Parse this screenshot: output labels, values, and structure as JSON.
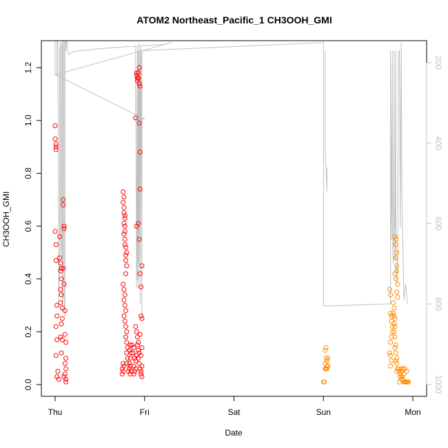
{
  "chart_data": {
    "type": "scatter",
    "title": "ATOM2 Northeast_Pacific_1 CH3OOH_GMI",
    "xlabel": "Date",
    "ylabel": "CH3OOH_GMI",
    "x_tick_labels": [
      "Thu",
      "Fri",
      "Sat",
      "Sun",
      "Mon"
    ],
    "ylim": [
      0.0,
      1.25
    ],
    "y_ticks": [
      "0.0",
      "0.2",
      "0.4",
      "0.6",
      "0.8",
      "1.0",
      "1.2"
    ],
    "y2_reversed_ticks": [
      "200",
      "400",
      "600",
      "800",
      "1000"
    ],
    "y2lim": [
      170,
      1050
    ],
    "grid": false,
    "colors": {
      "early": "#ff0000",
      "late": "#ff8c00",
      "profile": "#c0c0c0"
    },
    "series": [
      {
        "color": "#ff0000",
        "points": [
          [
            0.0,
            0.98
          ],
          [
            0.0,
            0.93
          ],
          [
            0.01,
            0.91
          ],
          [
            0.01,
            0.9
          ],
          [
            0.01,
            0.89
          ],
          [
            0.0,
            0.58
          ],
          [
            0.01,
            0.53
          ],
          [
            0.01,
            0.47
          ],
          [
            0.02,
            0.3
          ],
          [
            0.02,
            0.26
          ],
          [
            0.01,
            0.22
          ],
          [
            0.02,
            0.17
          ],
          [
            0.01,
            0.11
          ],
          [
            0.03,
            0.05
          ],
          [
            0.02,
            0.03
          ],
          [
            0.04,
            0.02
          ],
          [
            0.05,
            0.56
          ],
          [
            0.05,
            0.48
          ],
          [
            0.06,
            0.46
          ],
          [
            0.06,
            0.43
          ],
          [
            0.07,
            0.44
          ],
          [
            0.07,
            0.4
          ],
          [
            0.06,
            0.36
          ],
          [
            0.07,
            0.34
          ],
          [
            0.06,
            0.31
          ],
          [
            0.08,
            0.29
          ],
          [
            0.08,
            0.25
          ],
          [
            0.07,
            0.23
          ],
          [
            0.06,
            0.18
          ],
          [
            0.08,
            0.17
          ],
          [
            0.07,
            0.12
          ],
          [
            0.09,
            0.7
          ],
          [
            0.09,
            0.68
          ],
          [
            0.1,
            0.6
          ],
          [
            0.1,
            0.59
          ],
          [
            0.09,
            0.44
          ],
          [
            0.1,
            0.38
          ],
          [
            0.11,
            0.28
          ],
          [
            0.11,
            0.19
          ],
          [
            0.12,
            0.16
          ],
          [
            0.12,
            0.1
          ],
          [
            0.11,
            0.08
          ],
          [
            0.12,
            0.06
          ],
          [
            0.11,
            0.04
          ],
          [
            0.12,
            0.02
          ],
          [
            0.12,
            0.01
          ],
          [
            0.1,
            0.03
          ],
          [
            0.76,
            0.73
          ],
          [
            0.77,
            0.71
          ],
          [
            0.76,
            0.69
          ],
          [
            0.77,
            0.67
          ],
          [
            0.77,
            0.65
          ],
          [
            0.78,
            0.64
          ],
          [
            0.78,
            0.63
          ],
          [
            0.77,
            0.61
          ],
          [
            0.78,
            0.6
          ],
          [
            0.78,
            0.58
          ],
          [
            0.77,
            0.57
          ],
          [
            0.78,
            0.55
          ],
          [
            0.78,
            0.53
          ],
          [
            0.79,
            0.52
          ],
          [
            0.8,
            0.5
          ],
          [
            0.79,
            0.49
          ],
          [
            0.79,
            0.47
          ],
          [
            0.8,
            0.45
          ],
          [
            0.79,
            0.42
          ],
          [
            0.76,
            0.38
          ],
          [
            0.77,
            0.36
          ],
          [
            0.78,
            0.34
          ],
          [
            0.77,
            0.32
          ],
          [
            0.78,
            0.3
          ],
          [
            0.79,
            0.28
          ],
          [
            0.77,
            0.26
          ],
          [
            0.78,
            0.24
          ],
          [
            0.79,
            0.22
          ],
          [
            0.8,
            0.2
          ],
          [
            0.79,
            0.18
          ],
          [
            0.8,
            0.16
          ],
          [
            0.81,
            0.14
          ],
          [
            0.8,
            0.12
          ],
          [
            0.81,
            0.1
          ],
          [
            0.8,
            0.08
          ],
          [
            0.76,
            0.08
          ],
          [
            0.75,
            0.06
          ],
          [
            0.76,
            0.05
          ],
          [
            0.75,
            0.04
          ],
          [
            0.77,
            0.07
          ],
          [
            0.82,
            0.05
          ],
          [
            0.83,
            0.06
          ],
          [
            0.84,
            0.04
          ],
          [
            0.83,
            0.08
          ],
          [
            0.84,
            0.1
          ],
          [
            0.83,
            0.13
          ],
          [
            0.84,
            0.15
          ],
          [
            0.85,
            0.12
          ],
          [
            0.84,
            0.07
          ],
          [
            0.85,
            0.05
          ],
          [
            0.91,
            1.18
          ],
          [
            0.91,
            1.17
          ],
          [
            0.92,
            1.16
          ],
          [
            0.92,
            1.15
          ],
          [
            0.93,
            1.16
          ],
          [
            0.93,
            1.18
          ],
          [
            0.94,
            1.14
          ],
          [
            0.94,
            1.2
          ],
          [
            0.95,
            1.13
          ],
          [
            0.9,
            1.01
          ],
          [
            0.94,
            0.99
          ],
          [
            0.95,
            0.88
          ],
          [
            0.95,
            0.74
          ],
          [
            0.93,
            0.61
          ],
          [
            0.91,
            0.6
          ],
          [
            0.94,
            0.55
          ],
          [
            0.95,
            0.42
          ],
          [
            0.97,
            0.45
          ],
          [
            0.96,
            0.37
          ],
          [
            0.9,
            0.22
          ],
          [
            0.91,
            0.2
          ],
          [
            0.92,
            0.18
          ],
          [
            0.93,
            0.16
          ],
          [
            0.92,
            0.15
          ],
          [
            0.93,
            0.13
          ],
          [
            0.94,
            0.12
          ],
          [
            0.93,
            0.1
          ],
          [
            0.94,
            0.08
          ],
          [
            0.95,
            0.06
          ],
          [
            0.96,
            0.04
          ],
          [
            0.96,
            0.26
          ],
          [
            0.97,
            0.25
          ],
          [
            0.95,
            0.19
          ],
          [
            0.97,
            0.14
          ],
          [
            0.96,
            0.11
          ],
          [
            0.97,
            0.07
          ],
          [
            0.96,
            0.05
          ],
          [
            0.97,
            0.03
          ],
          [
            0.86,
            0.15
          ],
          [
            0.87,
            0.12
          ],
          [
            0.88,
            0.14
          ],
          [
            0.89,
            0.1
          ],
          [
            0.88,
            0.07
          ],
          [
            0.89,
            0.05
          ],
          [
            0.88,
            0.04
          ],
          [
            0.9,
            0.06
          ],
          [
            0.9,
            0.09
          ],
          [
            0.91,
            0.11
          ]
        ]
      },
      {
        "color": "#ff8c00",
        "points": [
          [
            3.0,
            0.01
          ],
          [
            3.01,
            0.01
          ],
          [
            3.02,
            0.06
          ],
          [
            3.03,
            0.06
          ],
          [
            3.04,
            0.07
          ],
          [
            3.02,
            0.08
          ],
          [
            3.03,
            0.1
          ],
          [
            3.04,
            0.09
          ],
          [
            3.02,
            0.13
          ],
          [
            3.03,
            0.14
          ],
          [
            3.05,
            0.1
          ],
          [
            3.05,
            0.07
          ],
          [
            3.04,
            0.06
          ],
          [
            3.74,
            0.36
          ],
          [
            3.75,
            0.34
          ],
          [
            3.75,
            0.27
          ],
          [
            3.76,
            0.26
          ],
          [
            3.76,
            0.24
          ],
          [
            3.77,
            0.22
          ],
          [
            3.77,
            0.2
          ],
          [
            3.76,
            0.18
          ],
          [
            3.75,
            0.16
          ],
          [
            3.74,
            0.12
          ],
          [
            3.75,
            0.11
          ],
          [
            3.76,
            0.09
          ],
          [
            3.75,
            0.07
          ],
          [
            3.78,
            0.31
          ],
          [
            3.79,
            0.29
          ],
          [
            3.78,
            0.27
          ],
          [
            3.79,
            0.26
          ],
          [
            3.8,
            0.25
          ],
          [
            3.79,
            0.23
          ],
          [
            3.8,
            0.22
          ],
          [
            3.79,
            0.2
          ],
          [
            3.8,
            0.18
          ],
          [
            3.81,
            0.15
          ],
          [
            3.8,
            0.14
          ],
          [
            3.81,
            0.12
          ],
          [
            3.82,
            0.1
          ],
          [
            3.81,
            0.09
          ],
          [
            3.82,
            0.08
          ],
          [
            3.83,
            0.06
          ],
          [
            3.82,
            0.05
          ],
          [
            3.8,
            0.56
          ],
          [
            3.81,
            0.55
          ],
          [
            3.81,
            0.53
          ],
          [
            3.82,
            0.5
          ],
          [
            3.81,
            0.48
          ],
          [
            3.82,
            0.45
          ],
          [
            3.82,
            0.43
          ],
          [
            3.81,
            0.4
          ],
          [
            3.83,
            0.38
          ],
          [
            3.82,
            0.35
          ],
          [
            3.83,
            0.33
          ],
          [
            3.8,
            0.42
          ],
          [
            3.84,
            0.06
          ],
          [
            3.85,
            0.05
          ],
          [
            3.86,
            0.04
          ],
          [
            3.87,
            0.06
          ],
          [
            3.86,
            0.03
          ],
          [
            3.87,
            0.02
          ],
          [
            3.88,
            0.05
          ],
          [
            3.89,
            0.06
          ],
          [
            3.88,
            0.03
          ],
          [
            3.89,
            0.02
          ],
          [
            3.9,
            0.04
          ],
          [
            3.91,
            0.06
          ],
          [
            3.9,
            0.01
          ],
          [
            3.91,
            0.01
          ],
          [
            3.92,
            0.01
          ],
          [
            3.93,
            0.01
          ],
          [
            3.94,
            0.01
          ],
          [
            3.95,
            0.01
          ],
          [
            3.93,
            0.05
          ],
          [
            3.85,
            0.01
          ]
        ]
      }
    ],
    "profile_line": [
      [
        0.0,
        40
      ],
      [
        0.0,
        170
      ],
      [
        0.0,
        230
      ],
      [
        0.02,
        230
      ],
      [
        0.02,
        170
      ],
      [
        0.03,
        40
      ],
      [
        0.03,
        170
      ],
      [
        0.04,
        720
      ],
      [
        0.04,
        790
      ],
      [
        0.05,
        700
      ],
      [
        0.05,
        170
      ],
      [
        0.06,
        150
      ],
      [
        0.06,
        620
      ],
      [
        0.07,
        690
      ],
      [
        0.07,
        170
      ],
      [
        0.08,
        140
      ],
      [
        0.08,
        820
      ],
      [
        0.09,
        690
      ],
      [
        0.09,
        170
      ],
      [
        0.1,
        130
      ],
      [
        0.1,
        790
      ],
      [
        0.11,
        830
      ],
      [
        0.11,
        170
      ],
      [
        0.12,
        120
      ],
      [
        0.12,
        170
      ],
      [
        0.13,
        130
      ],
      [
        0.14,
        170
      ],
      [
        0.15,
        180
      ],
      [
        0.2,
        172
      ],
      [
        0.5,
        165
      ],
      [
        0.8,
        160
      ],
      [
        1.2,
        155
      ],
      [
        1.3,
        150
      ],
      [
        0.0,
        230
      ],
      [
        0.5,
        285
      ],
      [
        1.0,
        340
      ],
      [
        0.9,
        340
      ],
      [
        0.9,
        160
      ],
      [
        0.91,
        760
      ],
      [
        0.92,
        160
      ],
      [
        0.92,
        740
      ],
      [
        0.93,
        170
      ],
      [
        0.93,
        760
      ],
      [
        0.94,
        150
      ],
      [
        0.94,
        700
      ],
      [
        0.95,
        170
      ],
      [
        0.95,
        800
      ],
      [
        0.96,
        160
      ],
      [
        0.97,
        830
      ],
      [
        0.97,
        170
      ],
      [
        3.0,
        150
      ],
      [
        3.0,
        805
      ],
      [
        3.05,
        805
      ],
      [
        3.7,
        800
      ],
      [
        3.75,
        800
      ],
      [
        3.75,
        170
      ],
      [
        3.76,
        640
      ],
      [
        3.77,
        170
      ],
      [
        3.77,
        590
      ],
      [
        3.78,
        700
      ],
      [
        3.79,
        170
      ],
      [
        3.79,
        560
      ],
      [
        3.8,
        650
      ],
      [
        3.8,
        690
      ],
      [
        3.81,
        170
      ],
      [
        3.81,
        660
      ],
      [
        3.82,
        750
      ],
      [
        3.83,
        690
      ],
      [
        3.84,
        170
      ],
      [
        3.85,
        170
      ],
      [
        3.86,
        610
      ],
      [
        3.87,
        150
      ],
      [
        3.88,
        550
      ],
      [
        3.9,
        790
      ],
      [
        3.92,
        750
      ],
      [
        3.93,
        780
      ],
      [
        3.94,
        800
      ]
    ],
    "profile_short": [
      [
        3.02,
        170
      ],
      [
        3.02,
        420
      ],
      [
        3.04,
        520
      ],
      [
        3.04,
        460
      ]
    ]
  }
}
